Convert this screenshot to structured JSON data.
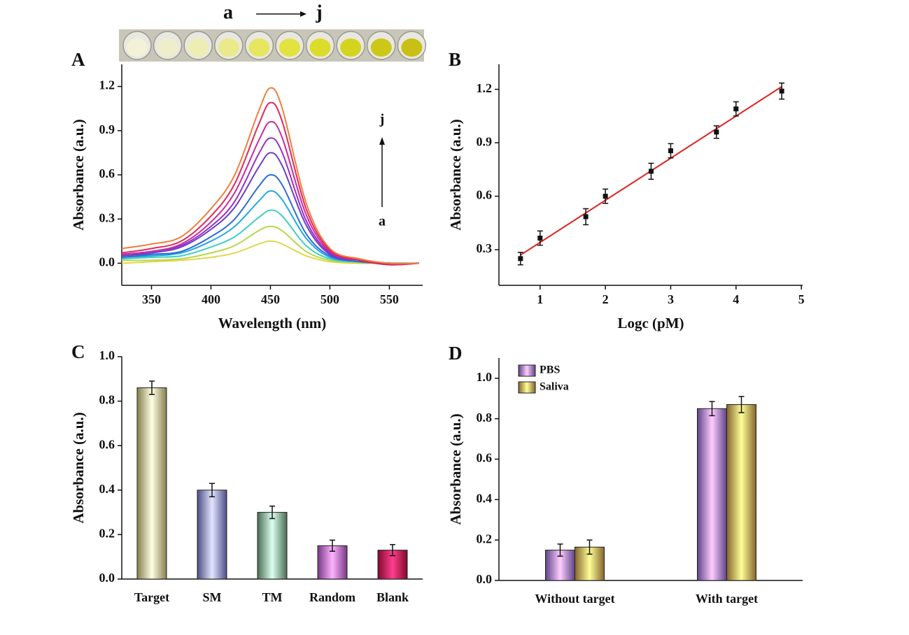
{
  "chart_data": [
    {
      "type": "line",
      "panel": "A",
      "xlabel": "Wavelength (nm)",
      "ylabel": "Absorbance (a.u.)",
      "photo_label": {
        "start": "a",
        "end": "j"
      },
      "annotations": {
        "top": "j",
        "bottom": "a"
      },
      "x": [
        325,
        350,
        375,
        400,
        420,
        440,
        450,
        460,
        480,
        500,
        525,
        550,
        575
      ],
      "xlim": [
        325,
        578
      ],
      "xticks": [
        350,
        400,
        450,
        500,
        550
      ],
      "ylim": [
        -0.15,
        1.35
      ],
      "yticks": [
        {
          "value": 0,
          "label": "0.0"
        },
        0.3,
        0.6,
        0.9,
        1.2
      ],
      "series": [
        {
          "color": "#e3d64a",
          "values": [
            0.0,
            0.01,
            0.02,
            0.04,
            0.07,
            0.13,
            0.15,
            0.13,
            0.05,
            0.01,
            0.0,
            0.0,
            0.0
          ]
        },
        {
          "color": "#b3d84c",
          "values": [
            0.02,
            0.02,
            0.03,
            0.07,
            0.12,
            0.22,
            0.25,
            0.22,
            0.08,
            0.02,
            0.0,
            0.0,
            0.0
          ]
        },
        {
          "color": "#3ecfc4",
          "values": [
            0.03,
            0.04,
            0.05,
            0.11,
            0.18,
            0.31,
            0.36,
            0.32,
            0.12,
            0.03,
            0.01,
            0.0,
            0.0
          ]
        },
        {
          "color": "#22a9e0",
          "values": [
            0.04,
            0.05,
            0.07,
            0.15,
            0.25,
            0.42,
            0.49,
            0.43,
            0.17,
            0.04,
            0.01,
            0.0,
            0.0
          ]
        },
        {
          "color": "#2f6bd6",
          "values": [
            0.04,
            0.06,
            0.08,
            0.18,
            0.3,
            0.52,
            0.6,
            0.53,
            0.2,
            0.05,
            0.01,
            0.0,
            0.0
          ]
        },
        {
          "color": "#6a3fc9",
          "values": [
            0.05,
            0.07,
            0.11,
            0.23,
            0.38,
            0.65,
            0.75,
            0.66,
            0.26,
            0.06,
            0.02,
            0.0,
            0.0
          ]
        },
        {
          "color": "#9a2fc4",
          "values": [
            0.06,
            0.08,
            0.12,
            0.25,
            0.42,
            0.74,
            0.85,
            0.75,
            0.29,
            0.07,
            0.02,
            0.0,
            0.0
          ]
        },
        {
          "color": "#c92a9f",
          "values": [
            0.06,
            0.08,
            0.13,
            0.28,
            0.48,
            0.83,
            0.96,
            0.85,
            0.33,
            0.08,
            0.02,
            -0.01,
            0.0
          ]
        },
        {
          "color": "#e0285a",
          "values": [
            0.07,
            0.1,
            0.15,
            0.32,
            0.54,
            0.94,
            1.09,
            0.96,
            0.37,
            0.09,
            0.02,
            -0.01,
            0.0
          ]
        },
        {
          "color": "#ee7f3a",
          "values": [
            0.1,
            0.13,
            0.18,
            0.37,
            0.6,
            1.03,
            1.19,
            1.05,
            0.41,
            0.1,
            0.03,
            0.0,
            0.0
          ]
        }
      ]
    },
    {
      "type": "scatter",
      "panel": "B",
      "xlabel": "Logc (pM)",
      "ylabel": "Absorbance (a.u.)",
      "x": [
        0.7,
        1,
        1.7,
        2,
        2.7,
        3,
        3.7,
        4,
        4.7
      ],
      "xlim": [
        0.37,
        5.02
      ],
      "xticks": [
        1,
        2,
        3,
        4,
        5
      ],
      "ylim": [
        0.1,
        1.34
      ],
      "yticks": [
        0.3,
        0.6,
        0.9,
        1.2
      ],
      "series": [
        {
          "color": "#111111",
          "values": [
            0.25,
            0.365,
            0.485,
            0.6,
            0.74,
            0.855,
            0.96,
            1.09,
            1.19
          ],
          "errors": [
            0.035,
            0.04,
            0.045,
            0.04,
            0.045,
            0.04,
            0.035,
            0.04,
            0.045
          ]
        }
      ],
      "fit": {
        "color": "#e02020",
        "x": [
          0.7,
          4.7
        ],
        "values": [
          0.27,
          1.215
        ]
      }
    },
    {
      "type": "bar",
      "panel": "C",
      "ylabel": "Absorbance (a.u.)",
      "categories": [
        "Target",
        "SM",
        "TM",
        "Random",
        "Blank"
      ],
      "ylim": [
        0,
        1.0
      ],
      "yticks": [
        {
          "value": 0,
          "label": "0.0"
        },
        0.2,
        0.4,
        0.6,
        0.8,
        {
          "value": 1.0,
          "label": "1.0"
        }
      ],
      "series": [
        {
          "values": [
            0.86,
            0.4,
            0.3,
            0.15,
            0.13
          ],
          "errors": [
            0.03,
            0.03,
            0.028,
            0.025,
            0.025
          ],
          "colors": [
            "#f0e68c",
            "#8a8cf0",
            "#85c495",
            "#d466f0",
            "#e8104c"
          ]
        }
      ]
    },
    {
      "type": "bar",
      "panel": "D",
      "ylabel": "Absorbance (a.u.)",
      "legend": "upper left",
      "categories": [
        "Without target",
        "With target"
      ],
      "ylim": [
        0,
        1.1
      ],
      "yticks": [
        {
          "value": 0,
          "label": "0.0"
        },
        0.2,
        0.4,
        0.6,
        0.8,
        {
          "value": 1.0,
          "label": "1.0"
        }
      ],
      "series": [
        {
          "name": "PBS",
          "color": "#a77af2",
          "values": [
            0.15,
            0.85
          ],
          "errors": [
            0.03,
            0.035
          ]
        },
        {
          "name": "Saliva",
          "color": "#f0b552",
          "values": [
            0.165,
            0.87
          ],
          "errors": [
            0.035,
            0.04
          ]
        }
      ]
    }
  ]
}
